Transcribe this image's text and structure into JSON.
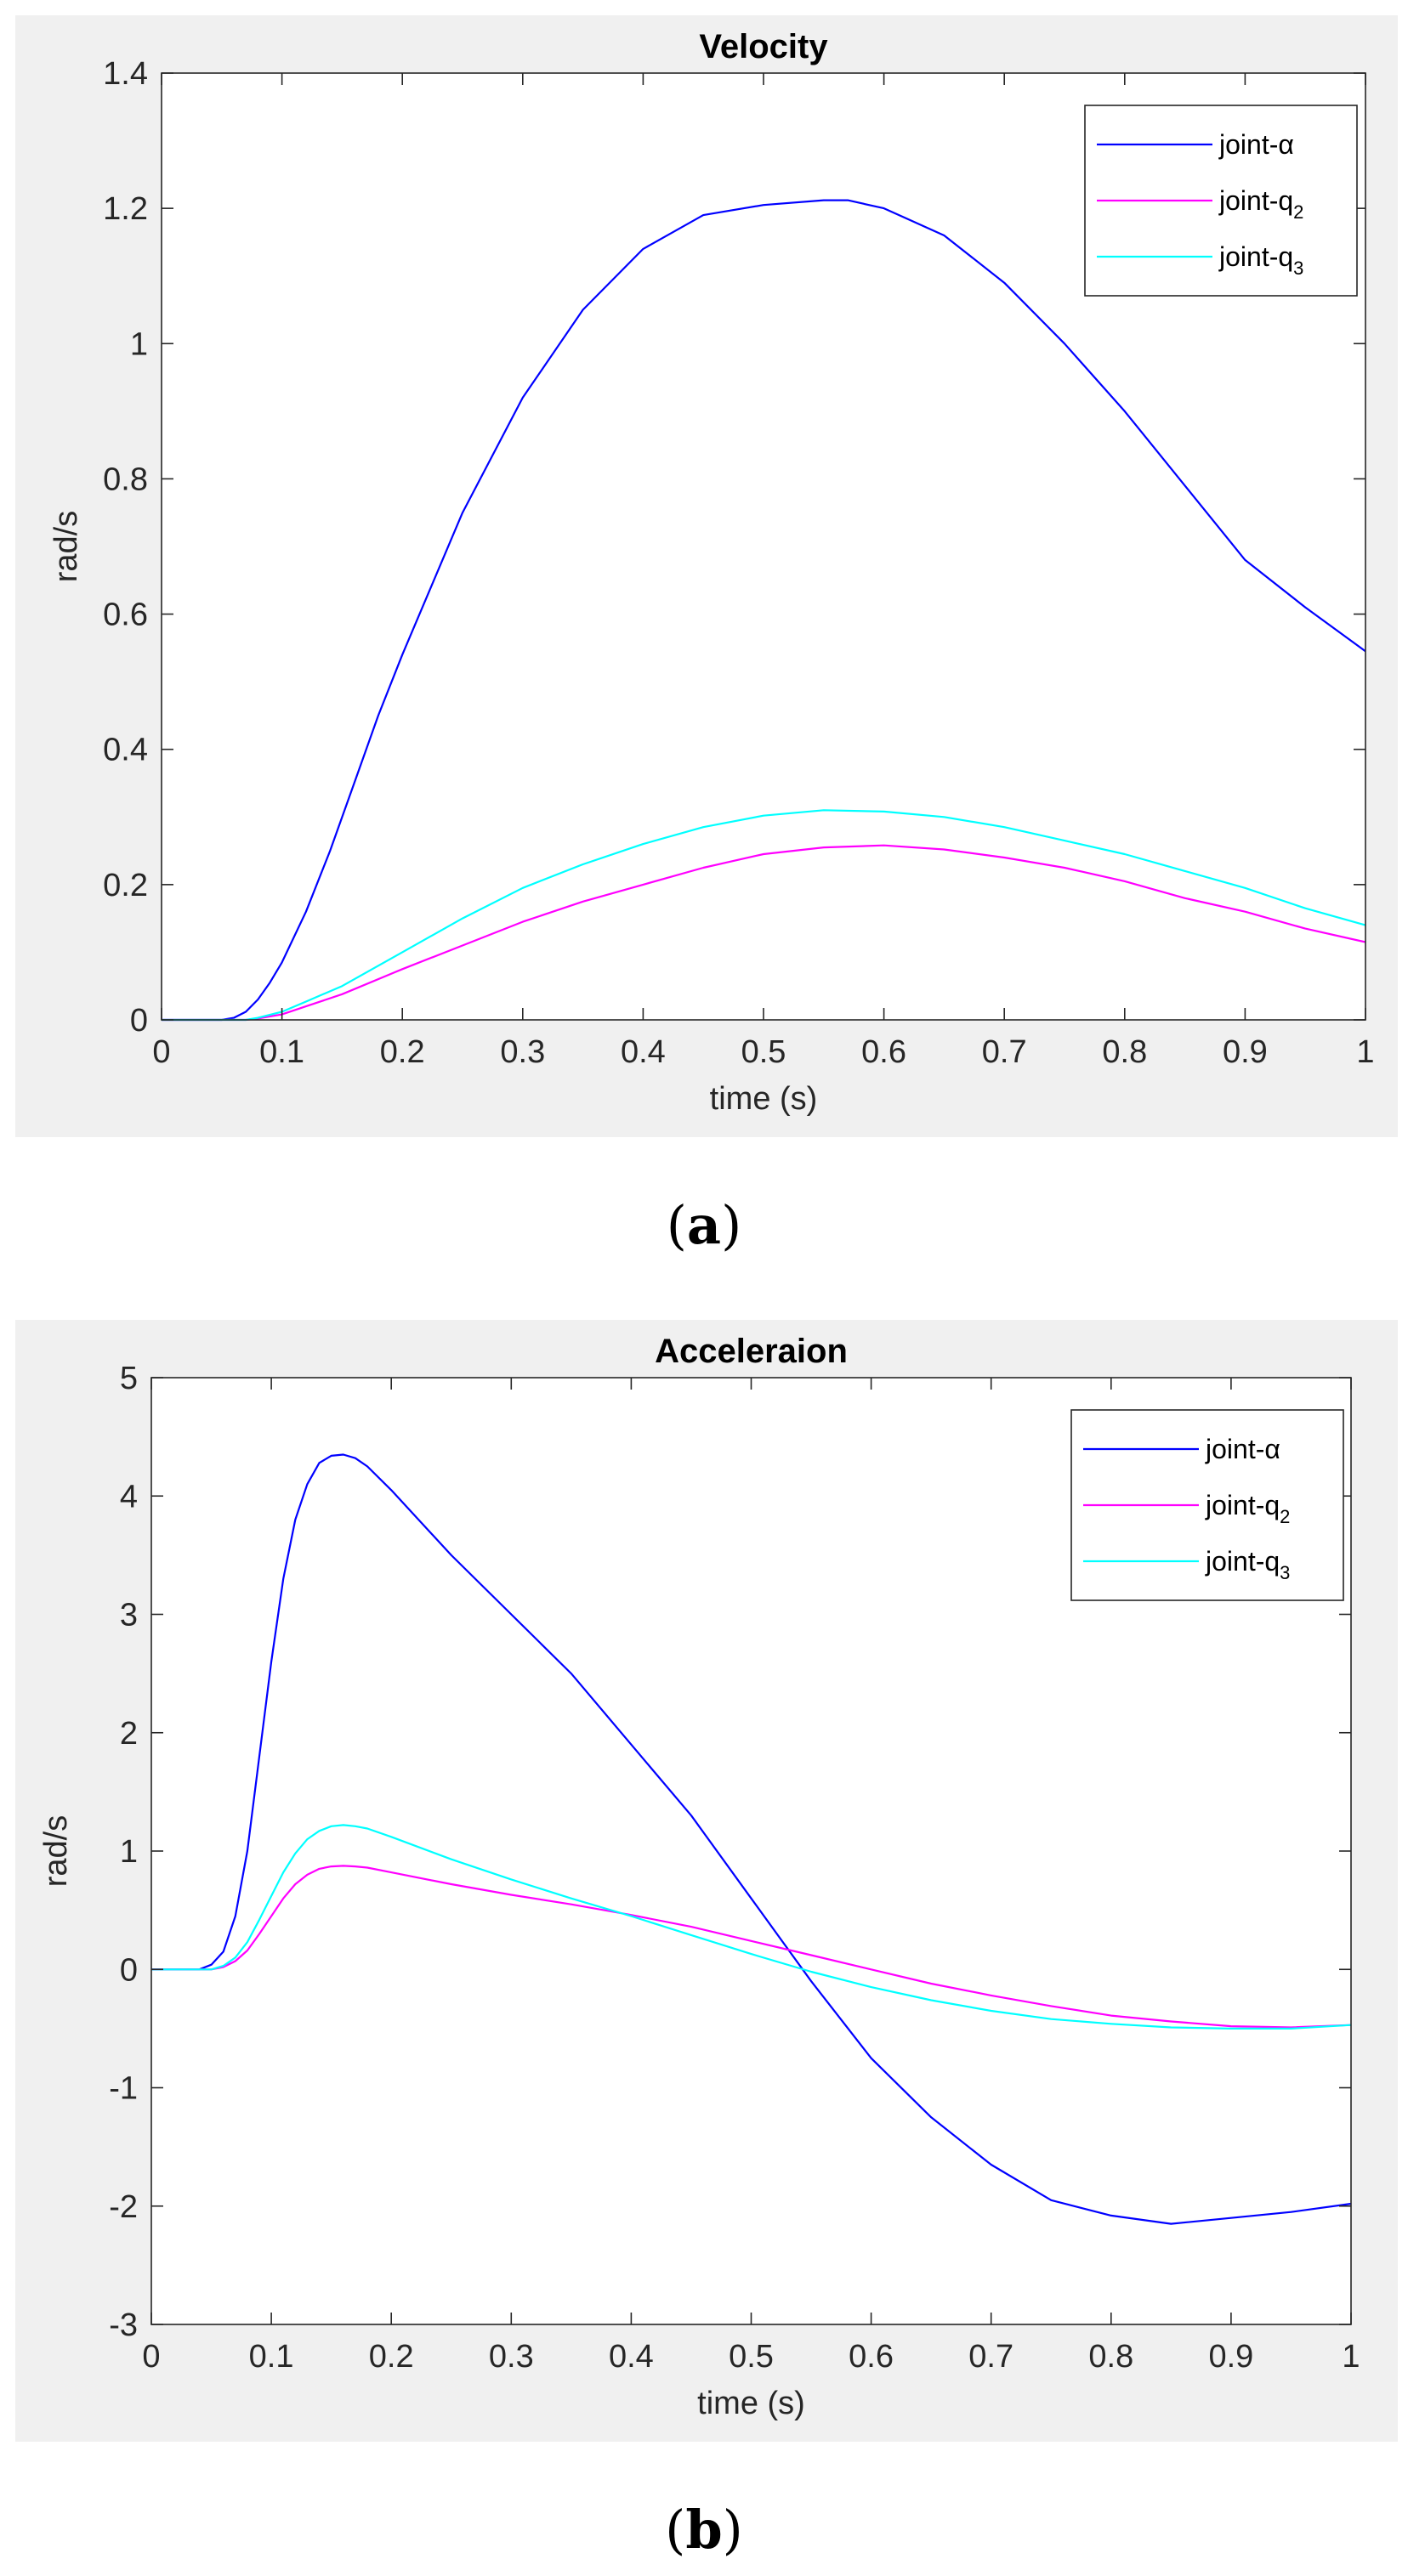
{
  "chart_data": [
    {
      "type": "line",
      "title": "Velocity",
      "xlabel": "time (s)",
      "ylabel": "rad/s",
      "xlim": [
        0,
        1
      ],
      "ylim": [
        0,
        1.4
      ],
      "xticks": [
        0,
        0.1,
        0.2,
        0.3,
        0.4,
        0.5,
        0.6,
        0.7,
        0.8,
        0.9,
        1
      ],
      "xtick_labels": [
        "0",
        "0.1",
        "0.2",
        "0.3",
        "0.4",
        "0.5",
        "0.6",
        "0.7",
        "0.8",
        "0.9",
        "1"
      ],
      "yticks": [
        0,
        0.2,
        0.4,
        0.6,
        0.8,
        1,
        1.2,
        1.4
      ],
      "ytick_labels": [
        "0",
        "0.2",
        "0.4",
        "0.6",
        "0.8",
        "1",
        "1.2",
        "1.4"
      ],
      "legend_position": "top-right",
      "caption": "(a)",
      "series": [
        {
          "name": "joint-α",
          "legend_main": "joint-α",
          "legend_sub": "",
          "color": "#0000ff",
          "x": [
            0,
            0.05,
            0.06,
            0.07,
            0.08,
            0.09,
            0.1,
            0.12,
            0.14,
            0.16,
            0.18,
            0.2,
            0.25,
            0.3,
            0.35,
            0.4,
            0.45,
            0.5,
            0.55,
            0.57,
            0.6,
            0.65,
            0.7,
            0.75,
            0.8,
            0.85,
            0.9,
            0.95,
            1
          ],
          "y": [
            0,
            0,
            0.003,
            0.012,
            0.03,
            0.055,
            0.085,
            0.16,
            0.25,
            0.35,
            0.45,
            0.54,
            0.75,
            0.92,
            1.05,
            1.14,
            1.19,
            1.205,
            1.212,
            1.212,
            1.2,
            1.16,
            1.09,
            1.0,
            0.9,
            0.79,
            0.68,
            0.61,
            0.545
          ]
        },
        {
          "name": "joint-q2",
          "legend_main": "joint-q",
          "legend_sub": "2",
          "color": "#ff00ff",
          "x": [
            0,
            0.07,
            0.08,
            0.1,
            0.12,
            0.15,
            0.2,
            0.25,
            0.3,
            0.35,
            0.4,
            0.45,
            0.5,
            0.55,
            0.6,
            0.65,
            0.7,
            0.75,
            0.8,
            0.85,
            0.9,
            0.95,
            1
          ],
          "y": [
            0,
            0,
            0.002,
            0.008,
            0.02,
            0.038,
            0.075,
            0.11,
            0.145,
            0.175,
            0.2,
            0.225,
            0.245,
            0.255,
            0.258,
            0.252,
            0.24,
            0.225,
            0.205,
            0.18,
            0.16,
            0.135,
            0.115
          ]
        },
        {
          "name": "joint-q3",
          "legend_main": "joint-q",
          "legend_sub": "3",
          "color": "#00ffff",
          "x": [
            0,
            0.07,
            0.08,
            0.1,
            0.12,
            0.15,
            0.2,
            0.25,
            0.3,
            0.35,
            0.4,
            0.45,
            0.5,
            0.55,
            0.6,
            0.65,
            0.7,
            0.75,
            0.8,
            0.85,
            0.9,
            0.95,
            1
          ],
          "y": [
            0,
            0,
            0.003,
            0.012,
            0.027,
            0.05,
            0.1,
            0.15,
            0.195,
            0.23,
            0.26,
            0.285,
            0.302,
            0.31,
            0.308,
            0.3,
            0.285,
            0.265,
            0.245,
            0.22,
            0.195,
            0.165,
            0.14
          ]
        }
      ]
    },
    {
      "type": "line",
      "title": "Acceleraion",
      "xlabel": "time (s)",
      "ylabel": "rad/s",
      "xlim": [
        0,
        1
      ],
      "ylim": [
        -3,
        5
      ],
      "xticks": [
        0,
        0.1,
        0.2,
        0.3,
        0.4,
        0.5,
        0.6,
        0.7,
        0.8,
        0.9,
        1
      ],
      "xtick_labels": [
        "0",
        "0.1",
        "0.2",
        "0.3",
        "0.4",
        "0.5",
        "0.6",
        "0.7",
        "0.8",
        "0.9",
        "1"
      ],
      "yticks": [
        -3,
        -2,
        -1,
        0,
        1,
        2,
        3,
        4,
        5
      ],
      "ytick_labels": [
        "-3",
        "-2",
        "-1",
        "0",
        "1",
        "2",
        "3",
        "4",
        "5"
      ],
      "legend_position": "top-right",
      "caption": "(b)",
      "series": [
        {
          "name": "joint-α",
          "legend_main": "joint-α",
          "legend_sub": "",
          "color": "#0000ff",
          "x": [
            0,
            0.04,
            0.05,
            0.06,
            0.07,
            0.08,
            0.09,
            0.1,
            0.11,
            0.12,
            0.13,
            0.14,
            0.15,
            0.16,
            0.17,
            0.18,
            0.2,
            0.25,
            0.3,
            0.35,
            0.4,
            0.45,
            0.5,
            0.55,
            0.6,
            0.65,
            0.7,
            0.75,
            0.8,
            0.85,
            0.9,
            0.95,
            1
          ],
          "y": [
            0,
            0,
            0.04,
            0.15,
            0.45,
            1.0,
            1.8,
            2.6,
            3.3,
            3.8,
            4.1,
            4.28,
            4.34,
            4.35,
            4.32,
            4.25,
            4.05,
            3.5,
            3.0,
            2.5,
            1.9,
            1.3,
            0.6,
            -0.1,
            -0.75,
            -1.25,
            -1.65,
            -1.95,
            -2.08,
            -2.15,
            -2.1,
            -2.05,
            -1.98
          ]
        },
        {
          "name": "joint-q2",
          "legend_main": "joint-q",
          "legend_sub": "2",
          "color": "#ff00ff",
          "x": [
            0,
            0.05,
            0.06,
            0.07,
            0.08,
            0.09,
            0.1,
            0.11,
            0.12,
            0.13,
            0.14,
            0.15,
            0.16,
            0.17,
            0.18,
            0.2,
            0.25,
            0.3,
            0.35,
            0.4,
            0.45,
            0.5,
            0.55,
            0.6,
            0.65,
            0.7,
            0.75,
            0.8,
            0.85,
            0.9,
            0.95,
            1
          ],
          "y": [
            0,
            0,
            0.02,
            0.07,
            0.16,
            0.3,
            0.45,
            0.6,
            0.72,
            0.8,
            0.85,
            0.87,
            0.875,
            0.87,
            0.86,
            0.82,
            0.72,
            0.63,
            0.55,
            0.46,
            0.36,
            0.24,
            0.12,
            0.0,
            -0.12,
            -0.22,
            -0.31,
            -0.39,
            -0.44,
            -0.48,
            -0.49,
            -0.47
          ]
        },
        {
          "name": "joint-q3",
          "legend_main": "joint-q",
          "legend_sub": "3",
          "color": "#00ffff",
          "x": [
            0,
            0.05,
            0.06,
            0.07,
            0.08,
            0.09,
            0.1,
            0.11,
            0.12,
            0.13,
            0.14,
            0.15,
            0.16,
            0.17,
            0.18,
            0.2,
            0.25,
            0.3,
            0.35,
            0.4,
            0.45,
            0.5,
            0.55,
            0.6,
            0.65,
            0.7,
            0.75,
            0.8,
            0.85,
            0.9,
            0.95,
            1
          ],
          "y": [
            0,
            0,
            0.03,
            0.1,
            0.23,
            0.42,
            0.62,
            0.82,
            0.98,
            1.1,
            1.17,
            1.21,
            1.22,
            1.21,
            1.19,
            1.12,
            0.93,
            0.76,
            0.6,
            0.45,
            0.29,
            0.13,
            -0.02,
            -0.15,
            -0.26,
            -0.35,
            -0.42,
            -0.46,
            -0.49,
            -0.5,
            -0.5,
            -0.47
          ]
        }
      ]
    }
  ]
}
